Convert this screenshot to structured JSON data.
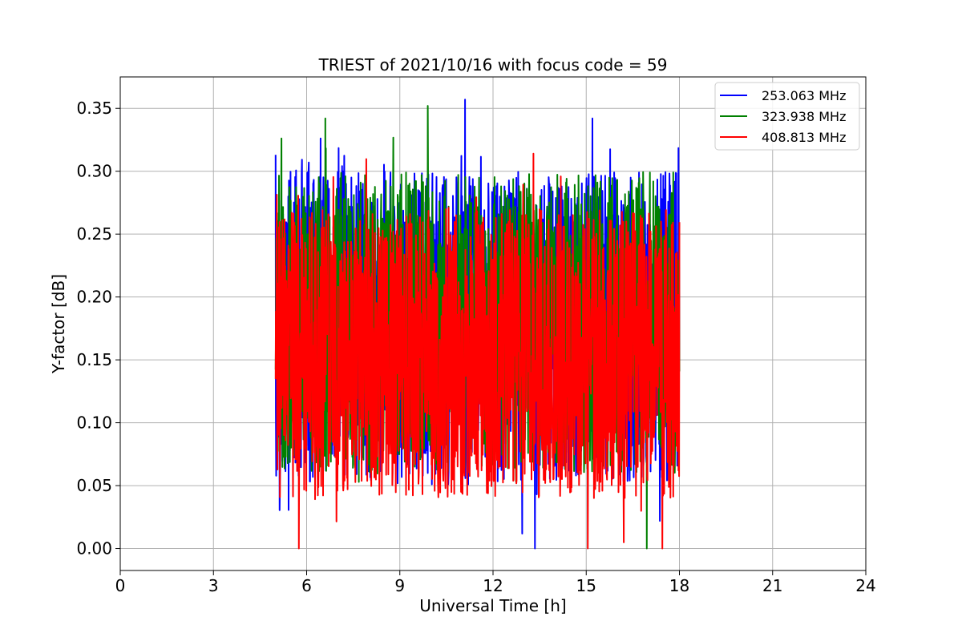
{
  "chart_data": {
    "type": "line",
    "title": "TRIEST of 2021/10/16 with focus code = 59",
    "xlabel": "Universal Time [h]",
    "ylabel": "Y-factor [dB]",
    "xlim": [
      0,
      24
    ],
    "ylim": [
      -0.0175,
      0.375
    ],
    "xticks": [
      0,
      3,
      6,
      9,
      12,
      15,
      18,
      21,
      24
    ],
    "xtick_labels": [
      "0",
      "3",
      "6",
      "9",
      "12",
      "15",
      "18",
      "21",
      "24"
    ],
    "yticks": [
      0.0,
      0.05,
      0.1,
      0.15,
      0.2,
      0.25,
      0.3,
      0.35
    ],
    "ytick_labels": [
      "0.00",
      "0.05",
      "0.10",
      "0.15",
      "0.20",
      "0.25",
      "0.30",
      "0.35"
    ],
    "grid": true,
    "legend_position": "top-right",
    "time_range": [
      5.0,
      18.0
    ],
    "series": [
      {
        "name": "253.063 MHz",
        "color": "#0000ff",
        "typical_range": [
          0.05,
          0.3
        ],
        "extremes": [
          {
            "x": 5.0,
            "y": 0.313
          },
          {
            "x": 11.1,
            "y": 0.357
          },
          {
            "x": 13.35,
            "y": 0.0
          },
          {
            "x": 15.2,
            "y": 0.342
          }
        ]
      },
      {
        "name": "323.938 MHz",
        "color": "#008000",
        "typical_range": [
          0.06,
          0.3
        ],
        "extremes": [
          {
            "x": 6.6,
            "y": 0.342
          },
          {
            "x": 9.9,
            "y": 0.352
          },
          {
            "x": 16.95,
            "y": 0.0
          }
        ]
      },
      {
        "name": "408.813 MHz",
        "color": "#ff0000",
        "typical_range": [
          0.04,
          0.27
        ],
        "extremes": [
          {
            "x": 5.75,
            "y": 0.0
          },
          {
            "x": 15.05,
            "y": 0.0
          },
          {
            "x": 17.45,
            "y": 0.0
          },
          {
            "x": 13.3,
            "y": 0.314
          }
        ]
      }
    ]
  }
}
